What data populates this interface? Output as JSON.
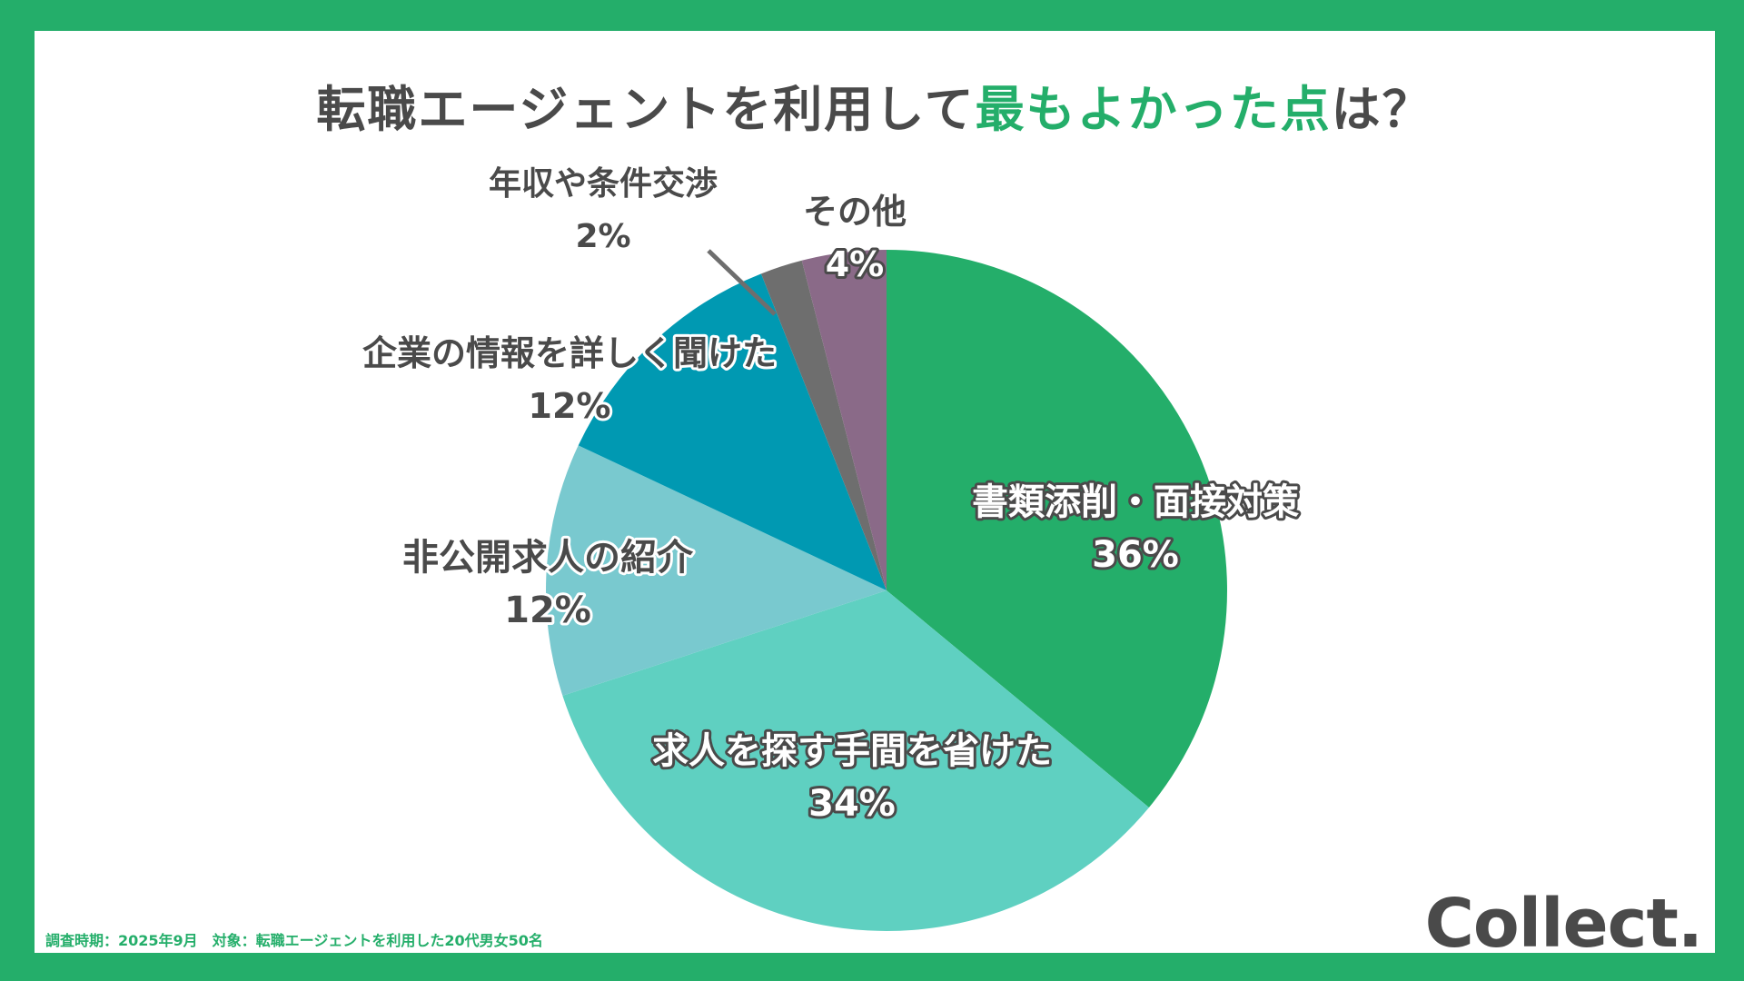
{
  "title": {
    "prefix": "転職エージェントを利用して",
    "highlight": "最もよかった点",
    "suffix": "は？"
  },
  "chart_data": {
    "type": "pie",
    "title": "転職エージェントを利用して最もよかった点は？",
    "slices": [
      {
        "label": "書類添削・面接対策",
        "value": 36,
        "value_label": "36%",
        "color": "#24ae6a"
      },
      {
        "label": "求人を探す手間を省けた",
        "value": 34,
        "value_label": "34%",
        "color": "#5fd0c1"
      },
      {
        "label": "非公開求人の紹介",
        "value": 12,
        "value_label": "12%",
        "color": "#79c9cf"
      },
      {
        "label": "企業の情報を詳しく聞けた",
        "value": 12,
        "value_label": "12%",
        "color": "#0099b2"
      },
      {
        "label": "年収や条件交渉",
        "value": 2,
        "value_label": "2%",
        "color": "#6e6e6e"
      },
      {
        "label": "その他",
        "value": 4,
        "value_label": "4%",
        "color": "#8a6a88"
      }
    ]
  },
  "footnote": "調査時期：2025年9月　対象：転職エージェントを利用した20代男女50名",
  "logo": "Collect."
}
